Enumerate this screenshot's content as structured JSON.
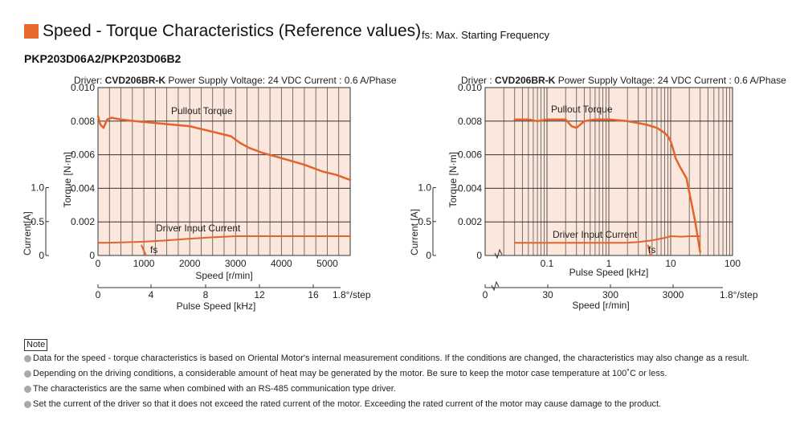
{
  "header": {
    "title": "Speed - Torque Characteristics (Reference values)",
    "subtitle": "fs: Max. Starting Frequency",
    "model": "PKP203D06A2/PKP203D06B2"
  },
  "colors": {
    "accent": "#e8682d",
    "curve": "#e5622a",
    "plot_bg": "#fbe7dc",
    "grid": "#555555"
  },
  "chart_data": [
    {
      "type": "line",
      "info_prefix": "Driver: ",
      "driver": "CVD206BR-K",
      "info_suffix": "Power Supply Voltage: 24 VDC   Current : 0.6 A/Phase",
      "x_scale": "linear",
      "xlabel": "Speed [r/min]",
      "xlim": [
        0,
        5500
      ],
      "x_ticks": [
        0,
        1000,
        2000,
        3000,
        4000,
        5000
      ],
      "x_tick_labels": [
        "0",
        "1000",
        "2000",
        "3000",
        "4000",
        "5000"
      ],
      "ylabel": "Torque [N·m]",
      "ylim": [
        0,
        0.01
      ],
      "y_ticks": [
        0,
        0.002,
        0.004,
        0.006,
        0.008,
        0.01
      ],
      "y_tick_labels": [
        "0",
        "0.002",
        "0.004",
        "0.006",
        "0.008",
        "0.010"
      ],
      "current_label": "Current[A]",
      "current_ticks": [
        "0",
        "0.5",
        "1.0"
      ],
      "secondary_xlabel": "Pulse Speed [kHz]",
      "secondary_ticks": [
        "0",
        "4",
        "8",
        "12",
        "16"
      ],
      "secondary_unit": "1.8°/step",
      "grid": true,
      "series": [
        {
          "name": "Pullout Torque",
          "x": [
            0,
            50,
            120,
            200,
            300,
            500,
            800,
            1200,
            1600,
            2000,
            2300,
            2600,
            2900,
            3100,
            3300,
            3600,
            4000,
            4500,
            4900,
            5200,
            5400,
            5500
          ],
          "y": [
            0.0083,
            0.0078,
            0.0076,
            0.0081,
            0.0082,
            0.0081,
            0.008,
            0.0079,
            0.0078,
            0.0077,
            0.0075,
            0.0073,
            0.0071,
            0.0067,
            0.0064,
            0.0061,
            0.0058,
            0.0054,
            0.005,
            0.0048,
            0.0046,
            0.0045
          ]
        },
        {
          "name": "Driver Input Current",
          "x": [
            0,
            500,
            1000,
            1500,
            2000,
            2500,
            3000,
            3500,
            4000,
            4500,
            5000,
            5500
          ],
          "y": [
            0.00075,
            0.00078,
            0.00082,
            0.0009,
            0.001,
            0.00108,
            0.00115,
            0.00115,
            0.00115,
            0.00115,
            0.00115,
            0.00115
          ]
        },
        {
          "name": "fs",
          "x": [
            950,
            1050
          ],
          "y": [
            0.0006,
            0
          ]
        }
      ]
    },
    {
      "type": "line",
      "info_prefix": "Driver : ",
      "driver": "CVD206BR-K",
      "info_suffix": "Power Supply Voltage: 24 VDC   Current : 0.6 A/Phase",
      "x_scale": "log",
      "xlabel": "Pulse Speed [kHz]",
      "xlim": [
        0.01,
        100
      ],
      "x_ticks": [
        0.1,
        1,
        10,
        100
      ],
      "x_tick_labels": [
        "0.1",
        "1",
        "10",
        "100"
      ],
      "ylabel": "Torque [N·m]",
      "ylim": [
        0,
        0.01
      ],
      "y_ticks": [
        0,
        0.002,
        0.004,
        0.006,
        0.008,
        0.01
      ],
      "y_tick_labels": [
        "0",
        "0.002",
        "0.004",
        "0.006",
        "0.008",
        "0.010"
      ],
      "current_label": "Current [A]",
      "current_ticks": [
        "0",
        "0.5",
        "1.0"
      ],
      "secondary_xlabel": "Speed [r/min]",
      "secondary_ticks": [
        "0",
        "30",
        "300",
        "3000"
      ],
      "secondary_unit": "1.8°/step",
      "grid": true,
      "series": [
        {
          "name": "Pullout Torque",
          "x": [
            0.03,
            0.05,
            0.07,
            0.1,
            0.15,
            0.2,
            0.25,
            0.3,
            0.4,
            0.6,
            1,
            2,
            4,
            6,
            8,
            9,
            10,
            11,
            12,
            14,
            18,
            25,
            30
          ],
          "y": [
            0.0081,
            0.0081,
            0.008,
            0.0081,
            0.0081,
            0.0081,
            0.0077,
            0.0076,
            0.008,
            0.0081,
            0.0081,
            0.008,
            0.0078,
            0.0076,
            0.0073,
            0.0071,
            0.0068,
            0.0063,
            0.0058,
            0.0053,
            0.0046,
            0.002,
            0.0002
          ]
        },
        {
          "name": "Driver Input Current",
          "x": [
            0.03,
            0.1,
            0.5,
            1,
            2,
            3,
            5,
            8,
            10,
            15,
            20,
            30
          ],
          "y": [
            0.00075,
            0.00075,
            0.00075,
            0.00075,
            0.00076,
            0.0008,
            0.0009,
            0.00105,
            0.00115,
            0.00112,
            0.00115,
            0.00115
          ]
        },
        {
          "name": "fs",
          "x": [
            4.3,
            4.7
          ],
          "y": [
            0.0006,
            0
          ]
        }
      ]
    }
  ],
  "notes": {
    "tag": "Note",
    "items": [
      "Data for the speed - torque characteristics is based on Oriental Motor's internal measurement conditions. If the conditions are changed, the characteristics may also change as a result.",
      "Depending on the driving conditions, a considerable amount of heat may be generated by the motor. Be sure to keep the motor case temperature at 100˚C or less.",
      "The characteristics are the same when combined with an RS-485 communication type driver.",
      "Set the current of the driver so that it does not exceed the rated current of the motor. Exceeding the rated current of the motor may cause damage to the product."
    ]
  }
}
